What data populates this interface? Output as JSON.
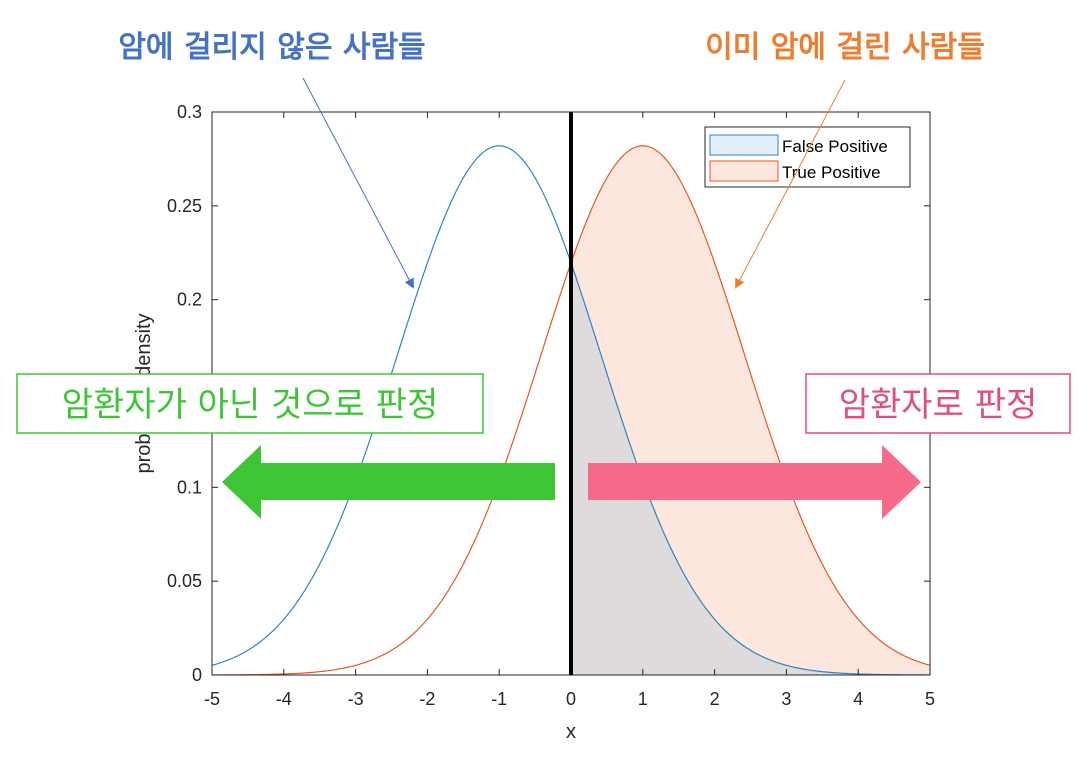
{
  "annotations": {
    "left_heading": "암에 걸리지 않은 사람들",
    "right_heading": "이미 암에 걸린 사람들",
    "left_box": "암환자가 아닌 것으로 판정",
    "right_box": "암환자로 판정"
  },
  "colors": {
    "left_heading": "#4472c4",
    "right_heading": "#ed7d31",
    "blue_curve": "#2e86c1",
    "orange_curve": "#e25a24",
    "green_arrow": "#3ec536",
    "pink_arrow": "#f76a8c",
    "green_box": "#3ec536",
    "pink_box": "#e04f7c"
  },
  "chart_data": {
    "type": "line",
    "title": "",
    "xlabel": "x",
    "ylabel": "probability density",
    "xlim": [
      -5,
      5
    ],
    "ylim": [
      0,
      0.3
    ],
    "xticks": [
      -5,
      -4,
      -3,
      -2,
      -1,
      0,
      1,
      2,
      3,
      4,
      5
    ],
    "yticks": [
      0,
      0.05,
      0.1,
      0.15,
      0.2,
      0.25,
      0.3
    ],
    "yticks_shown": [
      "0",
      "0.05",
      "0.1",
      "",
      "0.2",
      "0.25",
      "0.3"
    ],
    "threshold_x": 0,
    "legend_position": "top-right",
    "series": [
      {
        "name": "False Positive",
        "distribution": "normal",
        "mean": -1,
        "sd": 1.414,
        "peak": 0.282,
        "fill_from_x": 0
      },
      {
        "name": "True Positive",
        "distribution": "normal",
        "mean": 1,
        "sd": 1.414,
        "peak": 0.282,
        "fill_from_x": 0
      }
    ]
  }
}
